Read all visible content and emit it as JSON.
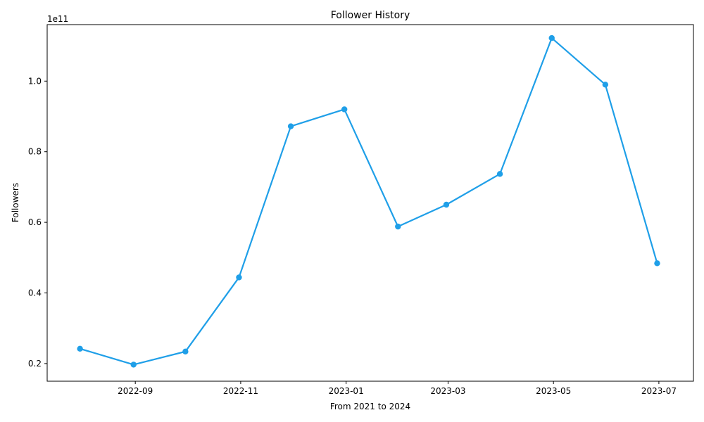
{
  "chart_data": {
    "type": "line",
    "title": "Follower History",
    "xlabel": "From 2021 to 2024",
    "ylabel": "Followers",
    "y_offset_text": "1e11",
    "y_scale_multiplier": 100000000000,
    "ylim": [
      0.15,
      1.16
    ],
    "xlim": [
      "2022-07-12",
      "2023-07-21"
    ],
    "grid": false,
    "series": [
      {
        "color": "#1f9fe8",
        "marker": "circle",
        "x": [
          "2022-07-31",
          "2022-08-31",
          "2022-09-30",
          "2022-10-31",
          "2022-11-30",
          "2022-12-31",
          "2023-01-31",
          "2023-02-28",
          "2023-03-31",
          "2023-04-30",
          "2023-05-31",
          "2023-06-30"
        ],
        "y": [
          0.242,
          0.197,
          0.234,
          0.444,
          0.872,
          0.92,
          0.588,
          0.65,
          0.737,
          1.122,
          0.99,
          0.484
        ]
      }
    ],
    "x_ticks": [
      {
        "date": "2022-09-01",
        "label": "2022-09"
      },
      {
        "date": "2022-11-01",
        "label": "2022-11"
      },
      {
        "date": "2023-01-01",
        "label": "2023-01"
      },
      {
        "date": "2023-03-01",
        "label": "2023-03"
      },
      {
        "date": "2023-05-01",
        "label": "2023-05"
      },
      {
        "date": "2023-07-01",
        "label": "2023-07"
      }
    ],
    "y_ticks": [
      {
        "value": 0.2,
        "label": "0.2"
      },
      {
        "value": 0.4,
        "label": "0.4"
      },
      {
        "value": 0.6,
        "label": "0.6"
      },
      {
        "value": 0.8,
        "label": "0.8"
      },
      {
        "value": 1.0,
        "label": "1.0"
      }
    ]
  }
}
